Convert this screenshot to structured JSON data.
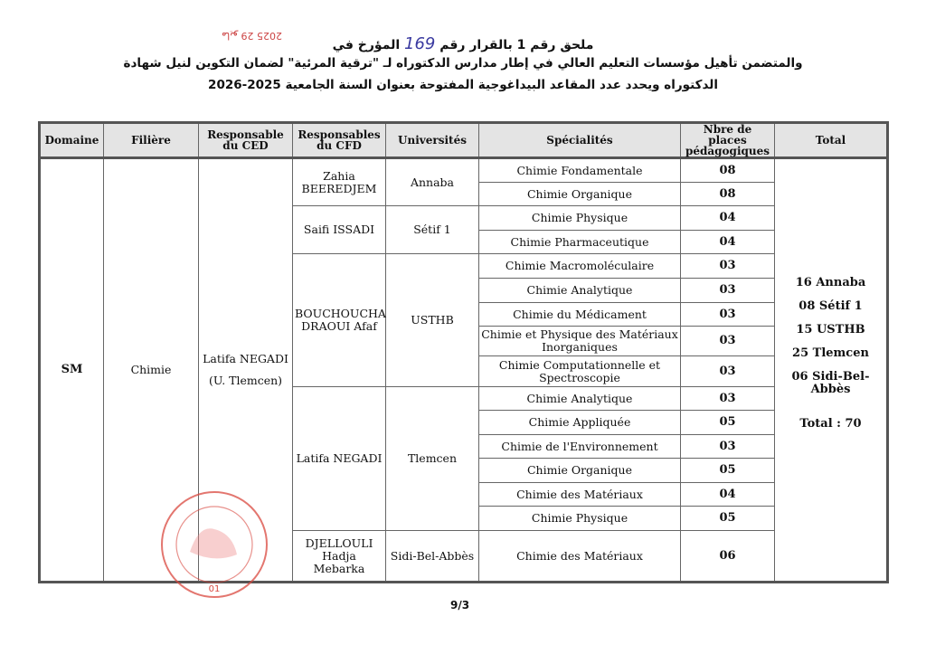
{
  "header": {
    "line1_prefix": "ملحق رقم 1 بالقرار رقم",
    "decree_number": "169",
    "line1_suffix": "المؤرخ في",
    "handwritten_date": "2025 مايو 29",
    "line2": "والمتضمن تأهيل مؤسسات التعليم العالي في إطار مدارس الدكتوراه لـ \"ترقية المرئية\" لضمان التكوين لنيل شهادة",
    "line3": "الدكتوراه ويحدد عدد المقاعد البيداغوجية المفتوحة بعنوان السنة الجامعية 2025-2026"
  },
  "table": {
    "headers": [
      "Domaine",
      "Filière",
      "Responsable du CED",
      "Responsables du CFD",
      "Universités",
      "Spécialités",
      "Nbre de places pédagogiques",
      "Total"
    ],
    "domaine": "SM",
    "filiere": "Chimie",
    "ced_name": "Latifa NEGADI",
    "ced_univ": "(U. Tlemcen)",
    "groups": [
      {
        "cfd": "Zahia BEEREDJEM",
        "univ": "Annaba",
        "rows": [
          [
            "Chimie Fondamentale",
            "08"
          ],
          [
            "Chimie Organique",
            "08"
          ]
        ]
      },
      {
        "cfd": "Saifi  ISSADI",
        "univ": "Sétif 1",
        "rows": [
          [
            "Chimie Physique",
            "04"
          ],
          [
            "Chimie Pharmaceutique",
            "04"
          ]
        ]
      },
      {
        "cfd": "BOUCHOUCHA DRAOUI Afaf",
        "univ": "USTHB",
        "rows": [
          [
            "Chimie Macromoléculaire",
            "03"
          ],
          [
            "Chimie Analytique",
            "03"
          ],
          [
            "Chimie du Médicament",
            "03"
          ],
          [
            "Chimie et Physique des Matériaux Inorganiques",
            "03"
          ],
          [
            "Chimie Computationnelle et Spectroscopie",
            "03"
          ]
        ]
      },
      {
        "cfd": "Latifa NEGADI",
        "univ": "Tlemcen",
        "rows": [
          [
            "Chimie Analytique",
            "03"
          ],
          [
            "Chimie Appliquée",
            "05"
          ],
          [
            "Chimie de l'Environnement",
            "03"
          ],
          [
            "Chimie Organique",
            "05"
          ],
          [
            "Chimie des Matériaux",
            "04"
          ],
          [
            "Chimie Physique",
            "05"
          ]
        ]
      },
      {
        "cfd": "DJELLOULI Hadja Mebarka",
        "univ": "Sidi-Bel-Abbès",
        "rows": [
          [
            "Chimie des Matériaux",
            "06"
          ]
        ]
      }
    ],
    "totals": [
      "16 Annaba",
      "08 Sétif 1",
      "15 USTHB",
      "25 Tlemcen",
      "06 Sidi-Bel-Abbès",
      "Total : 70"
    ]
  },
  "stamp": {
    "text": "01",
    "color": "#d9483f"
  },
  "page_number": "9/3"
}
